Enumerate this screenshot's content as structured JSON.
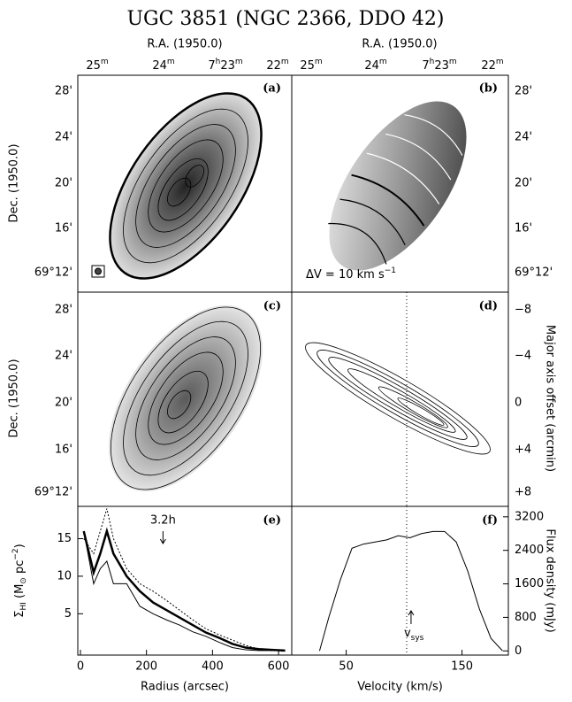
{
  "title": "UGC 3851 (NGC 2366, DDO 42)",
  "maps": {
    "ra_label": "R.A. (1950.0)",
    "ra_ticks": [
      [
        [
          "25",
          "m"
        ]
      ],
      [
        [
          "24",
          "m"
        ]
      ],
      [
        [
          "7",
          "h"
        ],
        [
          "23",
          "m"
        ]
      ],
      [
        [
          "22",
          "m"
        ]
      ]
    ],
    "dec_label": "Dec. (1950.0)",
    "dec_ticks": [
      "28'",
      "24'",
      "20'",
      "16'",
      "69°12'"
    ],
    "offset_label": "Major axis offset (arcmin)",
    "offset_ticks": [
      "−8",
      "−4",
      "0",
      "+4",
      "+8"
    ],
    "panels": [
      "(a)",
      "(b)",
      "(c)",
      "(d)"
    ],
    "dv_note": [
      "ΔV = 10 km s",
      "−1"
    ]
  },
  "chart_data": [
    {
      "type": "line",
      "panel": "(e)",
      "xlabel": "Radius (arcsec)",
      "ylabel": [
        "Σ",
        "HI",
        " (M",
        "⊙",
        " pc",
        "−2",
        ")"
      ],
      "annotation": "3.2h",
      "annotation_x": 250,
      "x": [
        10,
        40,
        60,
        80,
        100,
        140,
        180,
        220,
        260,
        300,
        340,
        380,
        420,
        460,
        500,
        540,
        580,
        620
      ],
      "series": [
        {
          "linestyle": "thick",
          "color": "#000000",
          "values": [
            16,
            10.5,
            13,
            16,
            13,
            10,
            8,
            6.5,
            5.5,
            4.5,
            3.5,
            2.5,
            1.8,
            1,
            0.5,
            0.3,
            0.2,
            0.1
          ]
        },
        {
          "linestyle": "thin",
          "color": "#000000",
          "values": [
            16,
            9,
            11,
            12,
            9,
            9,
            6,
            5,
            4.2,
            3.5,
            2.6,
            2,
            1.2,
            0.5,
            0.2,
            0.1,
            0.1,
            0.1
          ]
        },
        {
          "linestyle": "dotted",
          "color": "#000000",
          "values": [
            15,
            13,
            16,
            19,
            15,
            11,
            9,
            8,
            6.8,
            5.5,
            4.2,
            3,
            2.2,
            1.5,
            0.8,
            0.3,
            0.1,
            0
          ]
        }
      ],
      "xlim": [
        -8,
        640
      ],
      "xticks": [
        0,
        200,
        400,
        600
      ],
      "ylim": [
        -0.5,
        19.3
      ],
      "yticks": [
        5,
        10,
        15
      ],
      "yaxis": "left"
    },
    {
      "type": "line",
      "panel": "(f)",
      "xlabel": "Velocity (km/s)",
      "ylabel": "Flux density (mJy)",
      "vsys": [
        "v",
        "sys"
      ],
      "vsys_x": 106,
      "x": [
        27,
        35,
        45,
        55,
        65,
        75,
        85,
        95,
        105,
        115,
        125,
        135,
        145,
        155,
        165,
        175,
        185
      ],
      "series": [
        {
          "linestyle": "thin",
          "color": "#000000",
          "values": [
            0,
            800,
            1700,
            2450,
            2550,
            2600,
            2650,
            2750,
            2700,
            2800,
            2850,
            2850,
            2600,
            1900,
            1000,
            300,
            0
          ]
        }
      ],
      "xlim": [
        3,
        190
      ],
      "xticks": [
        50,
        150
      ],
      "ylim": [
        -100,
        3450
      ],
      "yticks": [
        0,
        800,
        1600,
        2400,
        3200
      ],
      "yaxis": "right"
    }
  ]
}
